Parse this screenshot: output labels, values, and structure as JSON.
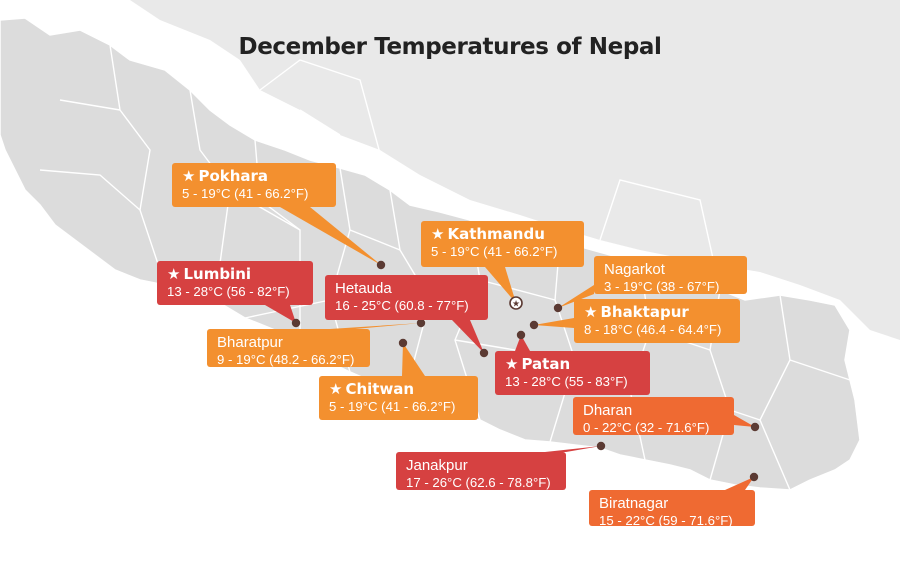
{
  "title": "December Temperatures of Nepal",
  "colors": {
    "map_fill": "#dcdcdc",
    "map_border": "#ffffff",
    "outer_land": "#e9e9e9",
    "orange": "#f3902f",
    "red": "#d64141",
    "dark_orange": "#ef6a32",
    "marker": "#5b3a33"
  },
  "cities": [
    {
      "id": "pokhara",
      "name": "Pokhara",
      "temp": "5 - 19°C (41 - 66.2°F)",
      "color": "orange",
      "star": true
    },
    {
      "id": "lumbini",
      "name": "Lumbini",
      "temp": "13 - 28°C (56 - 82°F)",
      "color": "red",
      "star": true
    },
    {
      "id": "hetauda",
      "name": "Hetauda",
      "temp": "16 - 25°C (60.8 - 77°F)",
      "color": "red",
      "star": false
    },
    {
      "id": "kathmandu",
      "name": "Kathmandu",
      "temp": "5 - 19°C (41 - 66.2°F)",
      "color": "orange",
      "star": true
    },
    {
      "id": "nagarkot",
      "name": "Nagarkot",
      "temp": "3 - 19°C (38 - 67°F)",
      "color": "orange",
      "star": false
    },
    {
      "id": "bhaktapur",
      "name": "Bhaktapur",
      "temp": "8 - 18°C (46.4 - 64.4°F)",
      "color": "orange",
      "star": true
    },
    {
      "id": "bharatpur",
      "name": "Bharatpur",
      "temp": "9 - 19°C (48.2 - 66.2°F)",
      "color": "orange",
      "star": false
    },
    {
      "id": "patan",
      "name": "Patan",
      "temp": "13 - 28°C (55 - 83°F)",
      "color": "red",
      "star": true
    },
    {
      "id": "chitwan",
      "name": "Chitwan",
      "temp": "5 - 19°C (41 - 66.2°F)",
      "color": "orange",
      "star": true
    },
    {
      "id": "dharan",
      "name": "Dharan",
      "temp": "0 - 22°C (32 - 71.6°F)",
      "color": "dark_orange",
      "star": false
    },
    {
      "id": "janakpur",
      "name": "Janakpur",
      "temp": "17 - 26°C (62.6 - 78.8°F)",
      "color": "red",
      "star": false
    },
    {
      "id": "biratnagar",
      "name": "Biratnagar",
      "temp": "15 - 22°C (59 - 71.6°F)",
      "color": "dark_orange",
      "star": false
    }
  ]
}
